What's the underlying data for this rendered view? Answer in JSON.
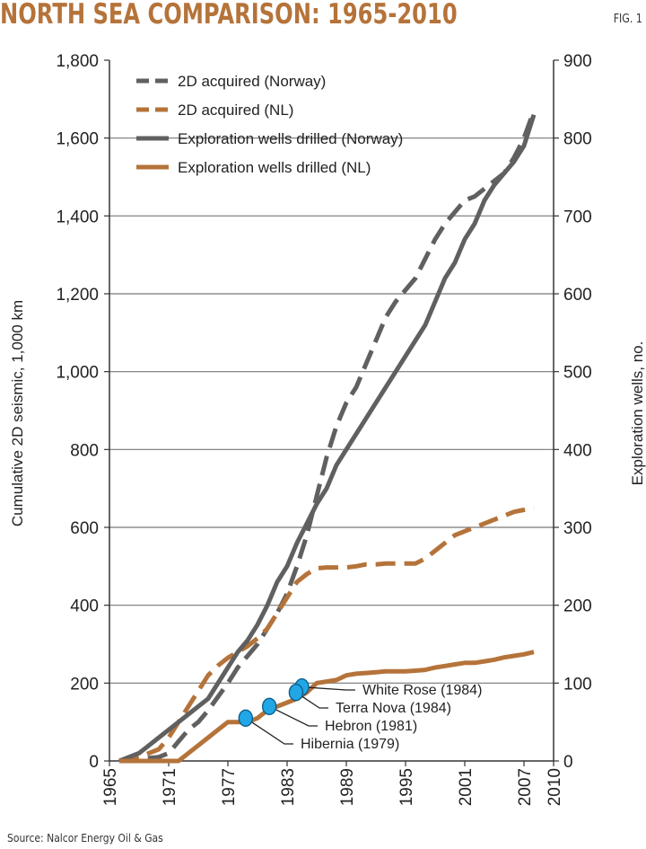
{
  "header": {
    "title": "NORTH SEA COMPARISON: 1965-2010",
    "fig": "FIG. 1"
  },
  "source": "Source: Nalcor Energy Oil & Gas",
  "colors": {
    "norway": "#606060",
    "nl": "#b5733a",
    "marker": "#22a7e6",
    "title": "#b5733a"
  },
  "chart_data": {
    "type": "line",
    "title": "NORTH SEA COMPARISON: 1965-2010",
    "ylabel_left": "Cumulative 2D seismic, 1,000 km",
    "ylabel_right": "Exploration wells, no.",
    "ylim_left": [
      0,
      1800
    ],
    "ylim_right": [
      0,
      900
    ],
    "xlim": [
      1965,
      2010
    ],
    "x_ticks": [
      "1965",
      "1971",
      "1977",
      "1983",
      "1989",
      "1995",
      "2001",
      "2007",
      "2010"
    ],
    "y_ticks_left": [
      "0",
      "200",
      "400",
      "600",
      "800",
      "1,000",
      "1,200",
      "1,400",
      "1,600",
      "1,800"
    ],
    "y_ticks_right": [
      "0",
      "100",
      "200",
      "300",
      "400",
      "500",
      "600",
      "700",
      "800",
      "900"
    ],
    "grid": "horizontal",
    "legend_position": "top-left",
    "series": [
      {
        "name": "2D acquired (Norway)",
        "axis": "left",
        "style": "dashed",
        "color_key": "norway",
        "x": [
          1966,
          1968,
          1970,
          1971,
          1972,
          1973,
          1974,
          1975,
          1976,
          1977,
          1978,
          1979,
          1980,
          1981,
          1982,
          1983,
          1984,
          1985,
          1986,
          1987,
          1988,
          1989,
          1990,
          1991,
          1992,
          1993,
          1994,
          1995,
          1996,
          1997,
          1998,
          1999,
          2000,
          2001,
          2002,
          2003,
          2004,
          2005,
          2006,
          2007,
          2008
        ],
        "values": [
          0,
          5,
          10,
          20,
          50,
          80,
          100,
          130,
          165,
          200,
          240,
          270,
          300,
          340,
          380,
          430,
          500,
          580,
          680,
          780,
          860,
          920,
          960,
          1020,
          1080,
          1140,
          1180,
          1210,
          1240,
          1290,
          1340,
          1380,
          1410,
          1440,
          1450,
          1470,
          1490,
          1510,
          1550,
          1600,
          1670
        ]
      },
      {
        "name": "2D acquired (NL)",
        "axis": "left",
        "style": "dashed",
        "color_key": "nl",
        "x": [
          1966,
          1968,
          1970,
          1971,
          1972,
          1973,
          1974,
          1975,
          1976,
          1977,
          1978,
          1979,
          1980,
          1981,
          1982,
          1983,
          1984,
          1985,
          1986,
          1987,
          1988,
          1989,
          1990,
          1991,
          1992,
          1993,
          1994,
          1995,
          1996,
          1997,
          1998,
          1999,
          2000,
          2001,
          2002,
          2003,
          2004,
          2005,
          2006,
          2007,
          2008
        ],
        "values": [
          0,
          10,
          30,
          60,
          100,
          140,
          180,
          220,
          245,
          265,
          280,
          295,
          315,
          340,
          380,
          420,
          460,
          480,
          495,
          497,
          497,
          497,
          500,
          505,
          505,
          507,
          507,
          507,
          507,
          520,
          540,
          560,
          580,
          590,
          600,
          610,
          620,
          630,
          640,
          645,
          650
        ]
      },
      {
        "name": "Exploration wells drilled (Norway)",
        "axis": "right",
        "style": "solid",
        "color_key": "norway",
        "x": [
          1966,
          1968,
          1969,
          1970,
          1971,
          1972,
          1973,
          1974,
          1975,
          1976,
          1977,
          1978,
          1979,
          1980,
          1981,
          1982,
          1983,
          1984,
          1985,
          1986,
          1987,
          1988,
          1989,
          1990,
          1991,
          1992,
          1993,
          1994,
          1995,
          1996,
          1997,
          1998,
          1999,
          2000,
          2001,
          2002,
          2003,
          2004,
          2005,
          2006,
          2007,
          2008
        ],
        "values": [
          0,
          10,
          20,
          30,
          40,
          50,
          60,
          70,
          80,
          100,
          120,
          140,
          155,
          175,
          200,
          230,
          250,
          280,
          305,
          330,
          350,
          380,
          400,
          420,
          440,
          460,
          480,
          500,
          520,
          540,
          560,
          590,
          620,
          640,
          670,
          690,
          720,
          740,
          755,
          770,
          790,
          830
        ]
      },
      {
        "name": "Exploration wells drilled (NL)",
        "axis": "right",
        "style": "solid",
        "color_key": "nl",
        "x": [
          1966,
          1968,
          1970,
          1971,
          1972,
          1973,
          1974,
          1975,
          1976,
          1977,
          1978,
          1979,
          1980,
          1981,
          1982,
          1983,
          1984,
          1985,
          1986,
          1987,
          1988,
          1989,
          1990,
          1991,
          1992,
          1993,
          1994,
          1995,
          1996,
          1997,
          1998,
          1999,
          2000,
          2001,
          2002,
          2003,
          2004,
          2005,
          2006,
          2007,
          2008
        ],
        "values": [
          0,
          0,
          0,
          0,
          0,
          10,
          20,
          30,
          40,
          50,
          50,
          50,
          55,
          65,
          70,
          75,
          80,
          88,
          100,
          102,
          104,
          110,
          112,
          113,
          114,
          115,
          115,
          115,
          116,
          117,
          120,
          122,
          124,
          126,
          126,
          128,
          130,
          133,
          135,
          137,
          140
        ]
      }
    ],
    "annotations": [
      {
        "label": "White Rose (1984)",
        "x": 1984.5,
        "y": 95
      },
      {
        "label": "Terra Nova (1984)",
        "x": 1983.9,
        "y": 88
      },
      {
        "label": "Hebron (1981)",
        "x": 1981.2,
        "y": 70
      },
      {
        "label": "Hibernia (1979)",
        "x": 1978.8,
        "y": 55
      }
    ]
  }
}
